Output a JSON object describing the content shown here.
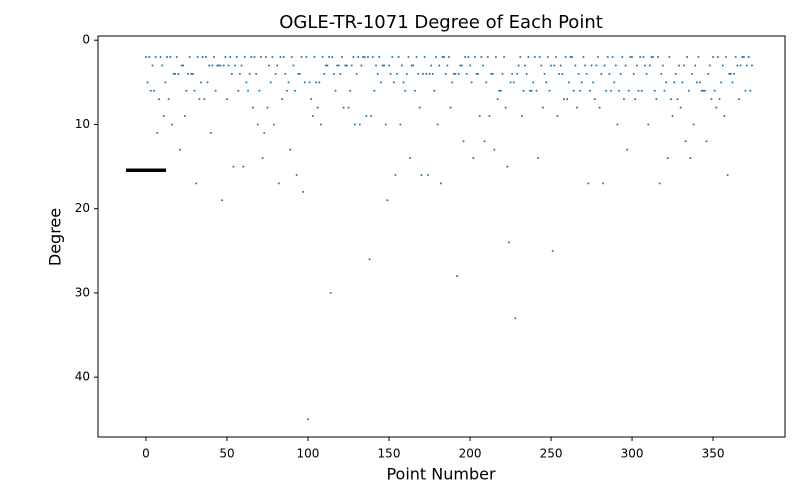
{
  "chart_data": {
    "type": "scatter",
    "title": "OGLE-TR-1071 Degree of Each Point",
    "x_label": "Point Number",
    "y_label": "Degree",
    "xlim": [
      -29.6,
      394.4
    ],
    "ylim": [
      47.1,
      -0.5
    ],
    "xticks": [
      0,
      50,
      100,
      150,
      200,
      250,
      300,
      350
    ],
    "yticks": [
      0,
      10,
      20,
      30,
      40
    ],
    "color": "#1f77b4",
    "x": [
      0,
      1,
      2,
      3,
      4,
      5,
      6,
      7,
      8,
      9,
      10,
      11,
      12,
      13,
      14,
      15,
      16,
      17,
      18,
      19,
      20,
      21,
      22,
      23,
      24,
      25,
      26,
      27,
      28,
      29,
      30,
      31,
      32,
      33,
      34,
      35,
      36,
      37,
      38,
      39,
      40,
      41,
      42,
      43,
      44,
      45,
      46,
      47,
      48,
      49,
      50,
      51,
      52,
      53,
      54,
      55,
      56,
      57,
      58,
      59,
      60,
      61,
      62,
      63,
      64,
      65,
      66,
      67,
      68,
      69,
      70,
      71,
      72,
      73,
      74,
      75,
      76,
      77,
      78,
      79,
      80,
      81,
      82,
      83,
      84,
      85,
      86,
      87,
      88,
      89,
      90,
      91,
      92,
      93,
      94,
      95,
      96,
      97,
      98,
      99,
      100,
      101,
      102,
      103,
      104,
      105,
      106,
      107,
      108,
      109,
      110,
      111,
      112,
      113,
      114,
      115,
      116,
      117,
      118,
      119,
      120,
      121,
      122,
      123,
      124,
      125,
      126,
      127,
      128,
      129,
      130,
      131,
      132,
      133,
      134,
      135,
      136,
      137,
      138,
      139,
      140,
      141,
      142,
      143,
      144,
      145,
      146,
      147,
      148,
      149,
      150,
      151,
      152,
      153,
      154,
      155,
      156,
      157,
      158,
      159,
      160,
      161,
      162,
      163,
      164,
      165,
      166,
      167,
      168,
      169,
      170,
      171,
      172,
      173,
      174,
      175,
      176,
      177,
      178,
      179,
      180,
      181,
      182,
      183,
      184,
      185,
      186,
      187,
      188,
      189,
      190,
      191,
      192,
      193,
      194,
      195,
      196,
      197,
      198,
      199,
      200,
      201,
      202,
      203,
      204,
      205,
      206,
      207,
      208,
      209,
      210,
      211,
      212,
      213,
      214,
      215,
      216,
      217,
      218,
      219,
      220,
      221,
      222,
      223,
      224,
      225,
      226,
      227,
      228,
      229,
      230,
      231,
      232,
      233,
      234,
      235,
      236,
      237,
      238,
      239,
      240,
      241,
      242,
      243,
      244,
      245,
      246,
      247,
      248,
      249,
      250,
      251,
      252,
      253,
      254,
      255,
      256,
      257,
      258,
      259,
      260,
      261,
      262,
      263,
      264,
      265,
      266,
      267,
      268,
      269,
      270,
      271,
      272,
      273,
      274,
      275,
      276,
      277,
      278,
      279,
      280,
      281,
      282,
      283,
      284,
      285,
      286,
      287,
      288,
      289,
      290,
      291,
      292,
      293,
      294,
      295,
      296,
      297,
      298,
      299,
      300,
      301,
      302,
      303,
      304,
      305,
      306,
      307,
      308,
      309,
      310,
      311,
      312,
      313,
      314,
      315,
      316,
      317,
      318,
      319,
      320,
      321,
      322,
      323,
      324,
      325,
      326,
      327,
      328,
      329,
      330,
      331,
      332,
      333,
      334,
      335,
      336,
      337,
      338,
      339,
      340,
      341,
      342,
      343,
      344,
      345,
      346,
      347,
      348,
      349,
      350,
      351,
      352,
      353,
      354,
      355,
      356,
      357,
      358,
      359,
      360,
      361,
      362,
      363,
      364,
      365,
      366,
      367,
      368,
      369,
      370,
      371,
      372,
      373,
      374
    ],
    "values": [
      2,
      5,
      2,
      6,
      3,
      6,
      2,
      11,
      7,
      2,
      3,
      9,
      5,
      2,
      7,
      2,
      10,
      4,
      4,
      2,
      4,
      13,
      3,
      3,
      9,
      6,
      4,
      2,
      4,
      4,
      6,
      17,
      2,
      7,
      5,
      2,
      7,
      2,
      5,
      3,
      11,
      3,
      2,
      6,
      3,
      3,
      3,
      19,
      3,
      2,
      7,
      3,
      2,
      4,
      15,
      3,
      2,
      6,
      4,
      3,
      15,
      2,
      5,
      6,
      4,
      2,
      8,
      2,
      4,
      10,
      6,
      2,
      14,
      11,
      2,
      8,
      3,
      5,
      2,
      10,
      4,
      3,
      17,
      2,
      7,
      2,
      4,
      6,
      5,
      13,
      2,
      3,
      6,
      16,
      4,
      4,
      2,
      18,
      5,
      2,
      45,
      5,
      7,
      9,
      2,
      5,
      8,
      5,
      10,
      2,
      4,
      3,
      3,
      2,
      30,
      2,
      4,
      6,
      3,
      3,
      4,
      2,
      8,
      3,
      3,
      8,
      6,
      3,
      2,
      10,
      4,
      2,
      10,
      3,
      2,
      2,
      9,
      2,
      26,
      9,
      2,
      6,
      3,
      4,
      2,
      5,
      3,
      3,
      10,
      19,
      3,
      4,
      2,
      5,
      16,
      4,
      2,
      10,
      3,
      5,
      6,
      4,
      2,
      14,
      3,
      3,
      6,
      2,
      4,
      8,
      16,
      4,
      2,
      4,
      16,
      4,
      3,
      4,
      6,
      2,
      10,
      3,
      17,
      2,
      2,
      4,
      3,
      2,
      8,
      5,
      4,
      4,
      28,
      4,
      3,
      3,
      12,
      2,
      4,
      2,
      3,
      5,
      14,
      2,
      4,
      4,
      9,
      2,
      3,
      12,
      5,
      2,
      9,
      4,
      4,
      13,
      2,
      7,
      6,
      6,
      4,
      2,
      8,
      15,
      24,
      5,
      4,
      5,
      33,
      4,
      3,
      2,
      9,
      6,
      3,
      4,
      2,
      6,
      6,
      5,
      2,
      6,
      14,
      2,
      3,
      8,
      4,
      5,
      2,
      6,
      3,
      25,
      3,
      2,
      9,
      4,
      3,
      4,
      7,
      2,
      7,
      5,
      2,
      2,
      6,
      3,
      8,
      4,
      6,
      5,
      2,
      3,
      4,
      17,
      6,
      3,
      5,
      7,
      3,
      2,
      8,
      4,
      17,
      3,
      6,
      2,
      4,
      6,
      2,
      5,
      3,
      10,
      6,
      4,
      2,
      7,
      3,
      13,
      6,
      2,
      2,
      4,
      7,
      3,
      6,
      2,
      6,
      2,
      3,
      4,
      10,
      3,
      2,
      2,
      6,
      7,
      2,
      17,
      4,
      3,
      6,
      5,
      14,
      2,
      7,
      9,
      5,
      4,
      7,
      3,
      8,
      5,
      3,
      12,
      2,
      6,
      14,
      4,
      10,
      3,
      5,
      2,
      5,
      6,
      6,
      6,
      12,
      4,
      3,
      7,
      2,
      6,
      8,
      2,
      7,
      5,
      3,
      9,
      2,
      16,
      4,
      4,
      5,
      4,
      2,
      3,
      7,
      3,
      2,
      2,
      6,
      3,
      2,
      6,
      3
    ]
  }
}
